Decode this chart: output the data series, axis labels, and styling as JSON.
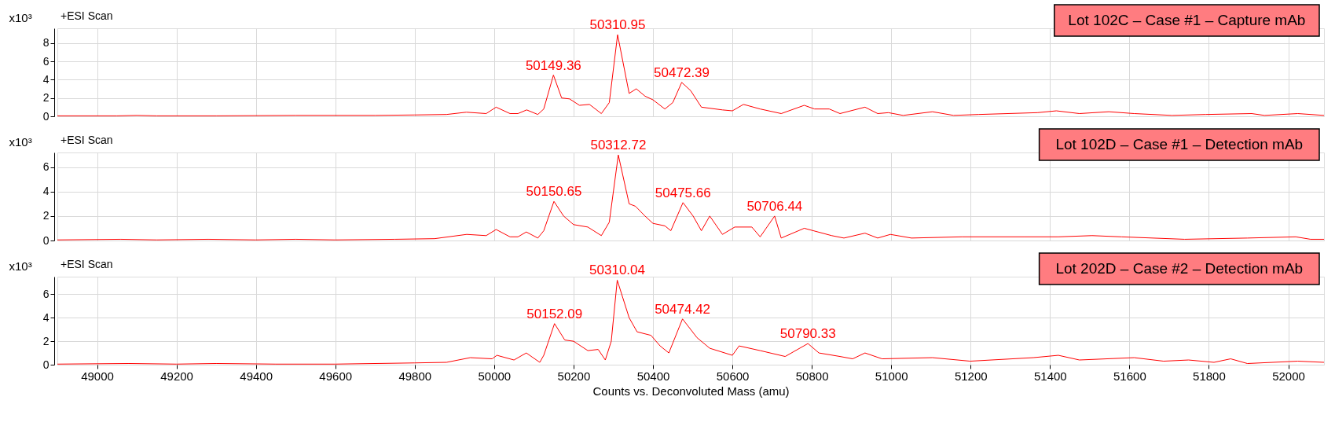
{
  "chart_data": [
    {
      "type": "line",
      "title": "Lot 102C – Case #1 – Capture mAb",
      "ylabel": "x10³",
      "tick_labels": "y",
      "grid": true,
      "annotations": [
        "+ESI Scan",
        {
          "text": "50149.36",
          "x": 50149.36,
          "y": 4.5
        },
        {
          "text": "50310.95",
          "x": 50310.95,
          "y": 8.9
        },
        {
          "text": "50472.39",
          "x": 50472.39,
          "y": 3.7
        }
      ],
      "xlim": [
        48900,
        52090
      ],
      "xticks": [
        49000,
        49200,
        49400,
        49600,
        49800,
        50000,
        50200,
        50400,
        50600,
        50800,
        51000,
        51200,
        51400,
        51600,
        51800,
        52000
      ],
      "ylim": [
        0,
        9.6
      ],
      "yticks": [
        0,
        2,
        4,
        6,
        8
      ],
      "x": [
        48900,
        49050,
        49100,
        49150,
        49300,
        49500,
        49700,
        49800,
        49880,
        49930,
        49980,
        50005,
        50040,
        50060,
        50082,
        50110,
        50125,
        50149.36,
        50170,
        50190,
        50215,
        50240,
        50270,
        50290,
        50310.95,
        50340,
        50358,
        50380,
        50400,
        50430,
        50450,
        50472.39,
        50495,
        50522,
        50575,
        50600,
        50628,
        50670,
        50723,
        50781,
        50807,
        50844,
        50871,
        50934,
        50966,
        50993,
        51030,
        51104,
        51157,
        51220,
        51368,
        51416,
        51474,
        51548,
        51612,
        51707,
        51792,
        51908,
        51940,
        52024,
        52090
      ],
      "series": [
        {
          "color": "#ff0000",
          "values": [
            0.05,
            0.05,
            0.1,
            0.05,
            0.05,
            0.1,
            0.1,
            0.15,
            0.2,
            0.45,
            0.3,
            1.0,
            0.3,
            0.3,
            0.7,
            0.2,
            0.8,
            4.5,
            2.0,
            1.9,
            1.2,
            1.3,
            0.3,
            1.5,
            8.9,
            2.5,
            3.0,
            2.2,
            1.8,
            0.8,
            1.5,
            3.7,
            2.8,
            1.0,
            0.7,
            0.6,
            1.3,
            0.8,
            0.3,
            1.2,
            0.8,
            0.8,
            0.3,
            1.0,
            0.3,
            0.4,
            0.1,
            0.5,
            0.1,
            0.2,
            0.4,
            0.6,
            0.3,
            0.5,
            0.3,
            0.1,
            0.2,
            0.3,
            0.1,
            0.3,
            0.1
          ]
        }
      ]
    },
    {
      "type": "line",
      "title": "Lot 102D – Case #1 – Detection mAb",
      "ylabel": "x10³",
      "tick_labels": "y",
      "grid": true,
      "annotations": [
        "+ESI Scan",
        {
          "text": "50150.65",
          "x": 50150.65,
          "y": 3.2
        },
        {
          "text": "50312.72",
          "x": 50312.72,
          "y": 7.0
        },
        {
          "text": "50475.66",
          "x": 50475.66,
          "y": 3.1
        },
        {
          "text": "50706.44",
          "x": 50706.44,
          "y": 2.0
        }
      ],
      "xlim": [
        48900,
        52090
      ],
      "xticks": [
        49000,
        49200,
        49400,
        49600,
        49800,
        50000,
        50200,
        50400,
        50600,
        50800,
        51000,
        51200,
        51400,
        51600,
        51800,
        52000
      ],
      "ylim": [
        0,
        7.2
      ],
      "yticks": [
        0,
        2,
        4,
        6
      ],
      "x": [
        48900,
        49060,
        49150,
        49280,
        49400,
        49500,
        49600,
        49750,
        49850,
        49931,
        49980,
        50005,
        50040,
        50060,
        50081,
        50110,
        50125,
        50150.65,
        50175,
        50200,
        50236,
        50270,
        50290,
        50312.72,
        50340,
        50356,
        50380,
        50400,
        50430,
        50445,
        50475.66,
        50501,
        50522,
        50543,
        50575,
        50606,
        50649,
        50670,
        50706.44,
        50723,
        50781,
        50850,
        50881,
        50934,
        50966,
        50998,
        51051,
        51178,
        51336,
        51421,
        51506,
        51580,
        51739,
        51897,
        52019,
        52056,
        52090
      ],
      "series": [
        {
          "color": "#ff0000",
          "values": [
            0.05,
            0.1,
            0.05,
            0.1,
            0.05,
            0.1,
            0.05,
            0.1,
            0.15,
            0.5,
            0.4,
            0.9,
            0.3,
            0.3,
            0.7,
            0.2,
            0.8,
            3.2,
            2.0,
            1.3,
            1.1,
            0.4,
            1.5,
            7.0,
            3.0,
            2.8,
            2.0,
            1.4,
            1.2,
            0.8,
            3.1,
            2.0,
            0.8,
            2.0,
            0.5,
            1.1,
            1.1,
            0.3,
            2.0,
            0.2,
            1.0,
            0.4,
            0.2,
            0.6,
            0.2,
            0.5,
            0.2,
            0.3,
            0.3,
            0.3,
            0.4,
            0.3,
            0.1,
            0.2,
            0.3,
            0.1,
            0.1
          ]
        }
      ]
    },
    {
      "type": "line",
      "title": "Lot 202D – Case #2 – Detection mAb",
      "ylabel": "x10³",
      "xlabel": "Counts vs. Deconvoluted Mass (amu)",
      "grid": true,
      "annotations": [
        "+ESI Scan",
        {
          "text": "50152.09",
          "x": 50152.09,
          "y": 3.5
        },
        {
          "text": "50310.04",
          "x": 50310.04,
          "y": 7.2
        },
        {
          "text": "50474.42",
          "x": 50474.42,
          "y": 3.9
        },
        {
          "text": "50790.33",
          "x": 50790.33,
          "y": 1.8
        }
      ],
      "xlim": [
        48900,
        52090
      ],
      "xticks": [
        49000,
        49200,
        49400,
        49600,
        49800,
        50000,
        50200,
        50400,
        50600,
        50800,
        51000,
        51200,
        51400,
        51600,
        51800,
        52000
      ],
      "ylim": [
        0,
        7.5
      ],
      "yticks": [
        0,
        2,
        4,
        6
      ],
      "x": [
        48900,
        49080,
        49200,
        49300,
        49450,
        49600,
        49800,
        49880,
        49940,
        49995,
        50007,
        50050,
        50081,
        50115,
        50125,
        50152.09,
        50178,
        50200,
        50236,
        50262,
        50280,
        50295,
        50310.04,
        50340,
        50360,
        50395,
        50418,
        50440,
        50474.42,
        50511,
        50543,
        50600,
        50617,
        50670,
        50733,
        50790.33,
        50818,
        50871,
        50903,
        50934,
        50977,
        51104,
        51199,
        51358,
        51421,
        51474,
        51612,
        51686,
        51749,
        51813,
        51855,
        51897,
        52024,
        52090
      ],
      "series": [
        {
          "color": "#ff0000",
          "values": [
            0.05,
            0.1,
            0.05,
            0.1,
            0.05,
            0.05,
            0.15,
            0.2,
            0.6,
            0.5,
            0.8,
            0.4,
            1.0,
            0.2,
            0.8,
            3.5,
            2.1,
            2.0,
            1.2,
            1.3,
            0.4,
            2.0,
            7.2,
            4.0,
            2.8,
            2.5,
            1.6,
            1.0,
            3.9,
            2.3,
            1.4,
            0.8,
            1.6,
            1.2,
            0.7,
            1.8,
            1.0,
            0.7,
            0.5,
            1.0,
            0.5,
            0.6,
            0.3,
            0.6,
            0.8,
            0.4,
            0.6,
            0.3,
            0.4,
            0.2,
            0.5,
            0.1,
            0.3,
            0.2
          ]
        }
      ]
    }
  ]
}
